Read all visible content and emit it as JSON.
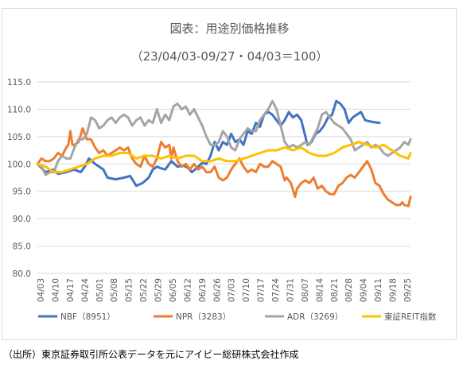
{
  "chart_data": {
    "type": "line",
    "title": "図表：用途別価格推移",
    "subtitle": "（23/04/03-09/27・04/03＝100）",
    "xlabel": "",
    "ylabel": "",
    "ylim": [
      80,
      115
    ],
    "yticks": [
      "115.0",
      "110.0",
      "105.0",
      "100.0",
      "95.0",
      "90.0",
      "85.0",
      "80.0"
    ],
    "ytick_values": [
      115,
      110,
      105,
      100,
      95,
      90,
      85,
      80
    ],
    "xticks": [
      "04/03",
      "04/10",
      "04/17",
      "04/24",
      "05/01",
      "05/08",
      "05/15",
      "05/22",
      "05/29",
      "06/05",
      "06/12",
      "06/19",
      "06/26",
      "07/03",
      "07/10",
      "07/17",
      "07/24",
      "07/31",
      "08/07",
      "08/14",
      "08/21",
      "08/28",
      "09/04",
      "09/11",
      "09/18",
      "09/25"
    ],
    "grid": "horizontal",
    "legend_position": "bottom",
    "series": [
      {
        "name": "NBF（8951）",
        "color": "#4472c4",
        "values": [
          [
            0,
            100
          ],
          [
            4,
            98.5
          ],
          [
            8,
            99
          ],
          [
            10,
            98.2
          ],
          [
            14,
            98.5
          ],
          [
            18,
            99
          ],
          [
            21,
            98.5
          ],
          [
            23,
            99.5
          ],
          [
            25,
            101
          ],
          [
            28,
            100
          ],
          [
            32,
            99
          ],
          [
            34,
            97.5
          ],
          [
            38,
            97.2
          ],
          [
            42,
            97.5
          ],
          [
            45,
            97.8
          ],
          [
            48,
            96
          ],
          [
            51,
            96.5
          ],
          [
            54,
            97.5
          ],
          [
            56,
            99
          ],
          [
            58,
            99.5
          ],
          [
            60,
            99.2
          ],
          [
            62,
            99
          ],
          [
            65,
            100.5
          ],
          [
            68,
            99.5
          ],
          [
            71,
            99.7
          ],
          [
            73,
            99.3
          ],
          [
            75,
            98.5
          ],
          [
            78,
            99.5
          ],
          [
            80,
            100.2
          ],
          [
            82,
            100
          ],
          [
            84,
            101.5
          ],
          [
            86,
            104
          ],
          [
            88,
            102.5
          ],
          [
            90,
            104
          ],
          [
            92,
            103.5
          ],
          [
            94,
            105.5
          ],
          [
            96,
            104
          ],
          [
            98,
            104.5
          ],
          [
            100,
            103.5
          ],
          [
            102,
            106
          ],
          [
            104,
            105.5
          ],
          [
            106,
            107.5
          ],
          [
            108,
            106.8
          ],
          [
            110,
            109
          ],
          [
            112,
            109.5
          ],
          [
            114,
            109
          ],
          [
            116,
            108
          ],
          [
            118,
            107
          ],
          [
            120,
            108
          ],
          [
            122,
            109.5
          ],
          [
            124,
            108.5
          ],
          [
            126,
            109
          ],
          [
            128,
            108
          ],
          [
            130,
            105
          ],
          [
            131,
            103.5
          ],
          [
            133,
            104
          ],
          [
            135,
            105.5
          ],
          [
            137,
            106
          ],
          [
            139,
            107
          ],
          [
            141,
            108.5
          ],
          [
            143,
            109
          ],
          [
            145,
            111.5
          ],
          [
            147,
            111
          ],
          [
            149,
            110
          ],
          [
            151,
            107.5
          ],
          [
            153,
            108.5
          ],
          [
            155,
            109
          ],
          [
            157,
            109.5
          ],
          [
            159,
            108
          ],
          [
            161,
            107.8
          ],
          [
            164,
            107.6
          ],
          [
            166,
            107.5
          ]
        ]
      },
      {
        "name": "NPR（3283）",
        "color": "#ed7d31",
        "values": [
          [
            0,
            100
          ],
          [
            2,
            101
          ],
          [
            4,
            100.5
          ],
          [
            6,
            100.5
          ],
          [
            8,
            101
          ],
          [
            10,
            102
          ],
          [
            12,
            101.5
          ],
          [
            14,
            103
          ],
          [
            15,
            103.5
          ],
          [
            16,
            106
          ],
          [
            17,
            103.5
          ],
          [
            18,
            103.5
          ],
          [
            20,
            104
          ],
          [
            22,
            106.5
          ],
          [
            24,
            104.5
          ],
          [
            26,
            104.5
          ],
          [
            28,
            103
          ],
          [
            30,
            102
          ],
          [
            32,
            102.5
          ],
          [
            34,
            101.5
          ],
          [
            36,
            102
          ],
          [
            38,
            102.5
          ],
          [
            40,
            103
          ],
          [
            42,
            102.5
          ],
          [
            44,
            103
          ],
          [
            46,
            101
          ],
          [
            48,
            100
          ],
          [
            50,
            99.5
          ],
          [
            52,
            101.5
          ],
          [
            54,
            100
          ],
          [
            56,
            99.5
          ],
          [
            58,
            101
          ],
          [
            60,
            104
          ],
          [
            62,
            103
          ],
          [
            64,
            103.5
          ],
          [
            65,
            101
          ],
          [
            66,
            103
          ],
          [
            68,
            100.5
          ],
          [
            70,
            99.5
          ],
          [
            72,
            100
          ],
          [
            74,
            99
          ],
          [
            76,
            100
          ],
          [
            78,
            99
          ],
          [
            80,
            99.5
          ],
          [
            82,
            98.5
          ],
          [
            84,
            98.5
          ],
          [
            86,
            99.5
          ],
          [
            88,
            97.5
          ],
          [
            90,
            97
          ],
          [
            92,
            97.5
          ],
          [
            94,
            99
          ],
          [
            96,
            100
          ],
          [
            98,
            101
          ],
          [
            100,
            99.5
          ],
          [
            102,
            98.5
          ],
          [
            104,
            99
          ],
          [
            106,
            98.5
          ],
          [
            108,
            100
          ],
          [
            110,
            99.5
          ],
          [
            112,
            99.5
          ],
          [
            114,
            100.5
          ],
          [
            116,
            100
          ],
          [
            118,
            99.5
          ],
          [
            120,
            97
          ],
          [
            121,
            97.5
          ],
          [
            123,
            96.5
          ],
          [
            125,
            94
          ],
          [
            126,
            95.5
          ],
          [
            128,
            96.5
          ],
          [
            130,
            97
          ],
          [
            132,
            96.5
          ],
          [
            134,
            97.5
          ],
          [
            136,
            95.5
          ],
          [
            138,
            96
          ],
          [
            140,
            95
          ],
          [
            142,
            94.5
          ],
          [
            144,
            94.5
          ],
          [
            146,
            96
          ],
          [
            148,
            96.5
          ],
          [
            150,
            97.5
          ],
          [
            152,
            98
          ],
          [
            154,
            97.5
          ],
          [
            156,
            98.5
          ],
          [
            158,
            99.5
          ],
          [
            160,
            100.5
          ],
          [
            162,
            99
          ],
          [
            164,
            96.5
          ],
          [
            166,
            96
          ],
          [
            168,
            94.5
          ],
          [
            170,
            93.5
          ],
          [
            172,
            93
          ],
          [
            174,
            92.5
          ],
          [
            176,
            92.5
          ],
          [
            177,
            93
          ],
          [
            178,
            92.5
          ],
          [
            180,
            92.3
          ],
          [
            181,
            94
          ]
        ]
      },
      {
        "name": "ADR（3269）",
        "color": "#a5a5a5",
        "values": [
          [
            0,
            100
          ],
          [
            2,
            99.5
          ],
          [
            4,
            98
          ],
          [
            6,
            98.5
          ],
          [
            8,
            98.5
          ],
          [
            10,
            100.5
          ],
          [
            12,
            101.5
          ],
          [
            14,
            101
          ],
          [
            16,
            101
          ],
          [
            18,
            103
          ],
          [
            20,
            104.5
          ],
          [
            22,
            104.5
          ],
          [
            24,
            105.5
          ],
          [
            26,
            108.5
          ],
          [
            28,
            108
          ],
          [
            30,
            106.5
          ],
          [
            32,
            107
          ],
          [
            34,
            108
          ],
          [
            36,
            108.5
          ],
          [
            38,
            107.5
          ],
          [
            40,
            108.5
          ],
          [
            42,
            109
          ],
          [
            44,
            108.5
          ],
          [
            46,
            107
          ],
          [
            48,
            108
          ],
          [
            50,
            108.5
          ],
          [
            52,
            107
          ],
          [
            54,
            108
          ],
          [
            56,
            107.5
          ],
          [
            58,
            110
          ],
          [
            60,
            107.5
          ],
          [
            62,
            109
          ],
          [
            64,
            108
          ],
          [
            66,
            110.5
          ],
          [
            68,
            111
          ],
          [
            70,
            110
          ],
          [
            72,
            110.5
          ],
          [
            74,
            109
          ],
          [
            76,
            110
          ],
          [
            78,
            108.5
          ],
          [
            80,
            107
          ],
          [
            82,
            105
          ],
          [
            84,
            103.5
          ],
          [
            86,
            103.5
          ],
          [
            88,
            104
          ],
          [
            90,
            106
          ],
          [
            92,
            105
          ],
          [
            94,
            103
          ],
          [
            96,
            102.5
          ],
          [
            98,
            104.5
          ],
          [
            100,
            105.5
          ],
          [
            102,
            106.5
          ],
          [
            104,
            106
          ],
          [
            106,
            106
          ],
          [
            108,
            108
          ],
          [
            110,
            109
          ],
          [
            112,
            110
          ],
          [
            114,
            111.5
          ],
          [
            116,
            110
          ],
          [
            118,
            107
          ],
          [
            120,
            104
          ],
          [
            122,
            103
          ],
          [
            124,
            103.5
          ],
          [
            126,
            103
          ],
          [
            128,
            103.5
          ],
          [
            130,
            104
          ],
          [
            132,
            103.5
          ],
          [
            134,
            105
          ],
          [
            136,
            106.5
          ],
          [
            138,
            109
          ],
          [
            140,
            109.5
          ],
          [
            142,
            108.5
          ],
          [
            144,
            107.5
          ],
          [
            146,
            107
          ],
          [
            148,
            106.5
          ],
          [
            150,
            105.5
          ],
          [
            152,
            104.5
          ],
          [
            154,
            102.5
          ],
          [
            156,
            103
          ],
          [
            158,
            103.5
          ],
          [
            160,
            104
          ],
          [
            162,
            103
          ],
          [
            164,
            103.5
          ],
          [
            166,
            103
          ],
          [
            168,
            102
          ],
          [
            170,
            101.5
          ],
          [
            172,
            102
          ],
          [
            174,
            102.5
          ],
          [
            176,
            103
          ],
          [
            178,
            104
          ],
          [
            180,
            103.5
          ],
          [
            181,
            104.5
          ]
        ]
      },
      {
        "name": "東証REIT指数",
        "color": "#ffc000",
        "values": [
          [
            0,
            100
          ],
          [
            4,
            99.5
          ],
          [
            8,
            98.5
          ],
          [
            12,
            98.5
          ],
          [
            16,
            99
          ],
          [
            20,
            99.5
          ],
          [
            24,
            100
          ],
          [
            28,
            101
          ],
          [
            32,
            101.5
          ],
          [
            36,
            101.5
          ],
          [
            40,
            102
          ],
          [
            44,
            102
          ],
          [
            48,
            101
          ],
          [
            52,
            101.5
          ],
          [
            56,
            101.5
          ],
          [
            60,
            101
          ],
          [
            64,
            101.5
          ],
          [
            68,
            101
          ],
          [
            72,
            101.5
          ],
          [
            76,
            101.5
          ],
          [
            80,
            100.5
          ],
          [
            84,
            100.5
          ],
          [
            88,
            101
          ],
          [
            92,
            100.5
          ],
          [
            96,
            100.5
          ],
          [
            100,
            101
          ],
          [
            104,
            101.5
          ],
          [
            108,
            102
          ],
          [
            112,
            102.5
          ],
          [
            116,
            102.5
          ],
          [
            120,
            103
          ],
          [
            124,
            102.5
          ],
          [
            128,
            103
          ],
          [
            132,
            102
          ],
          [
            136,
            101.5
          ],
          [
            140,
            101.5
          ],
          [
            144,
            102
          ],
          [
            148,
            103
          ],
          [
            152,
            103.5
          ],
          [
            156,
            104
          ],
          [
            160,
            103.5
          ],
          [
            164,
            103
          ],
          [
            168,
            103.5
          ],
          [
            172,
            102.5
          ],
          [
            176,
            101.5
          ],
          [
            180,
            101
          ],
          [
            181,
            102
          ]
        ]
      }
    ]
  },
  "source_note": "（出所）東京証券取引所公表データを元にアイビー総研株式会社作成"
}
